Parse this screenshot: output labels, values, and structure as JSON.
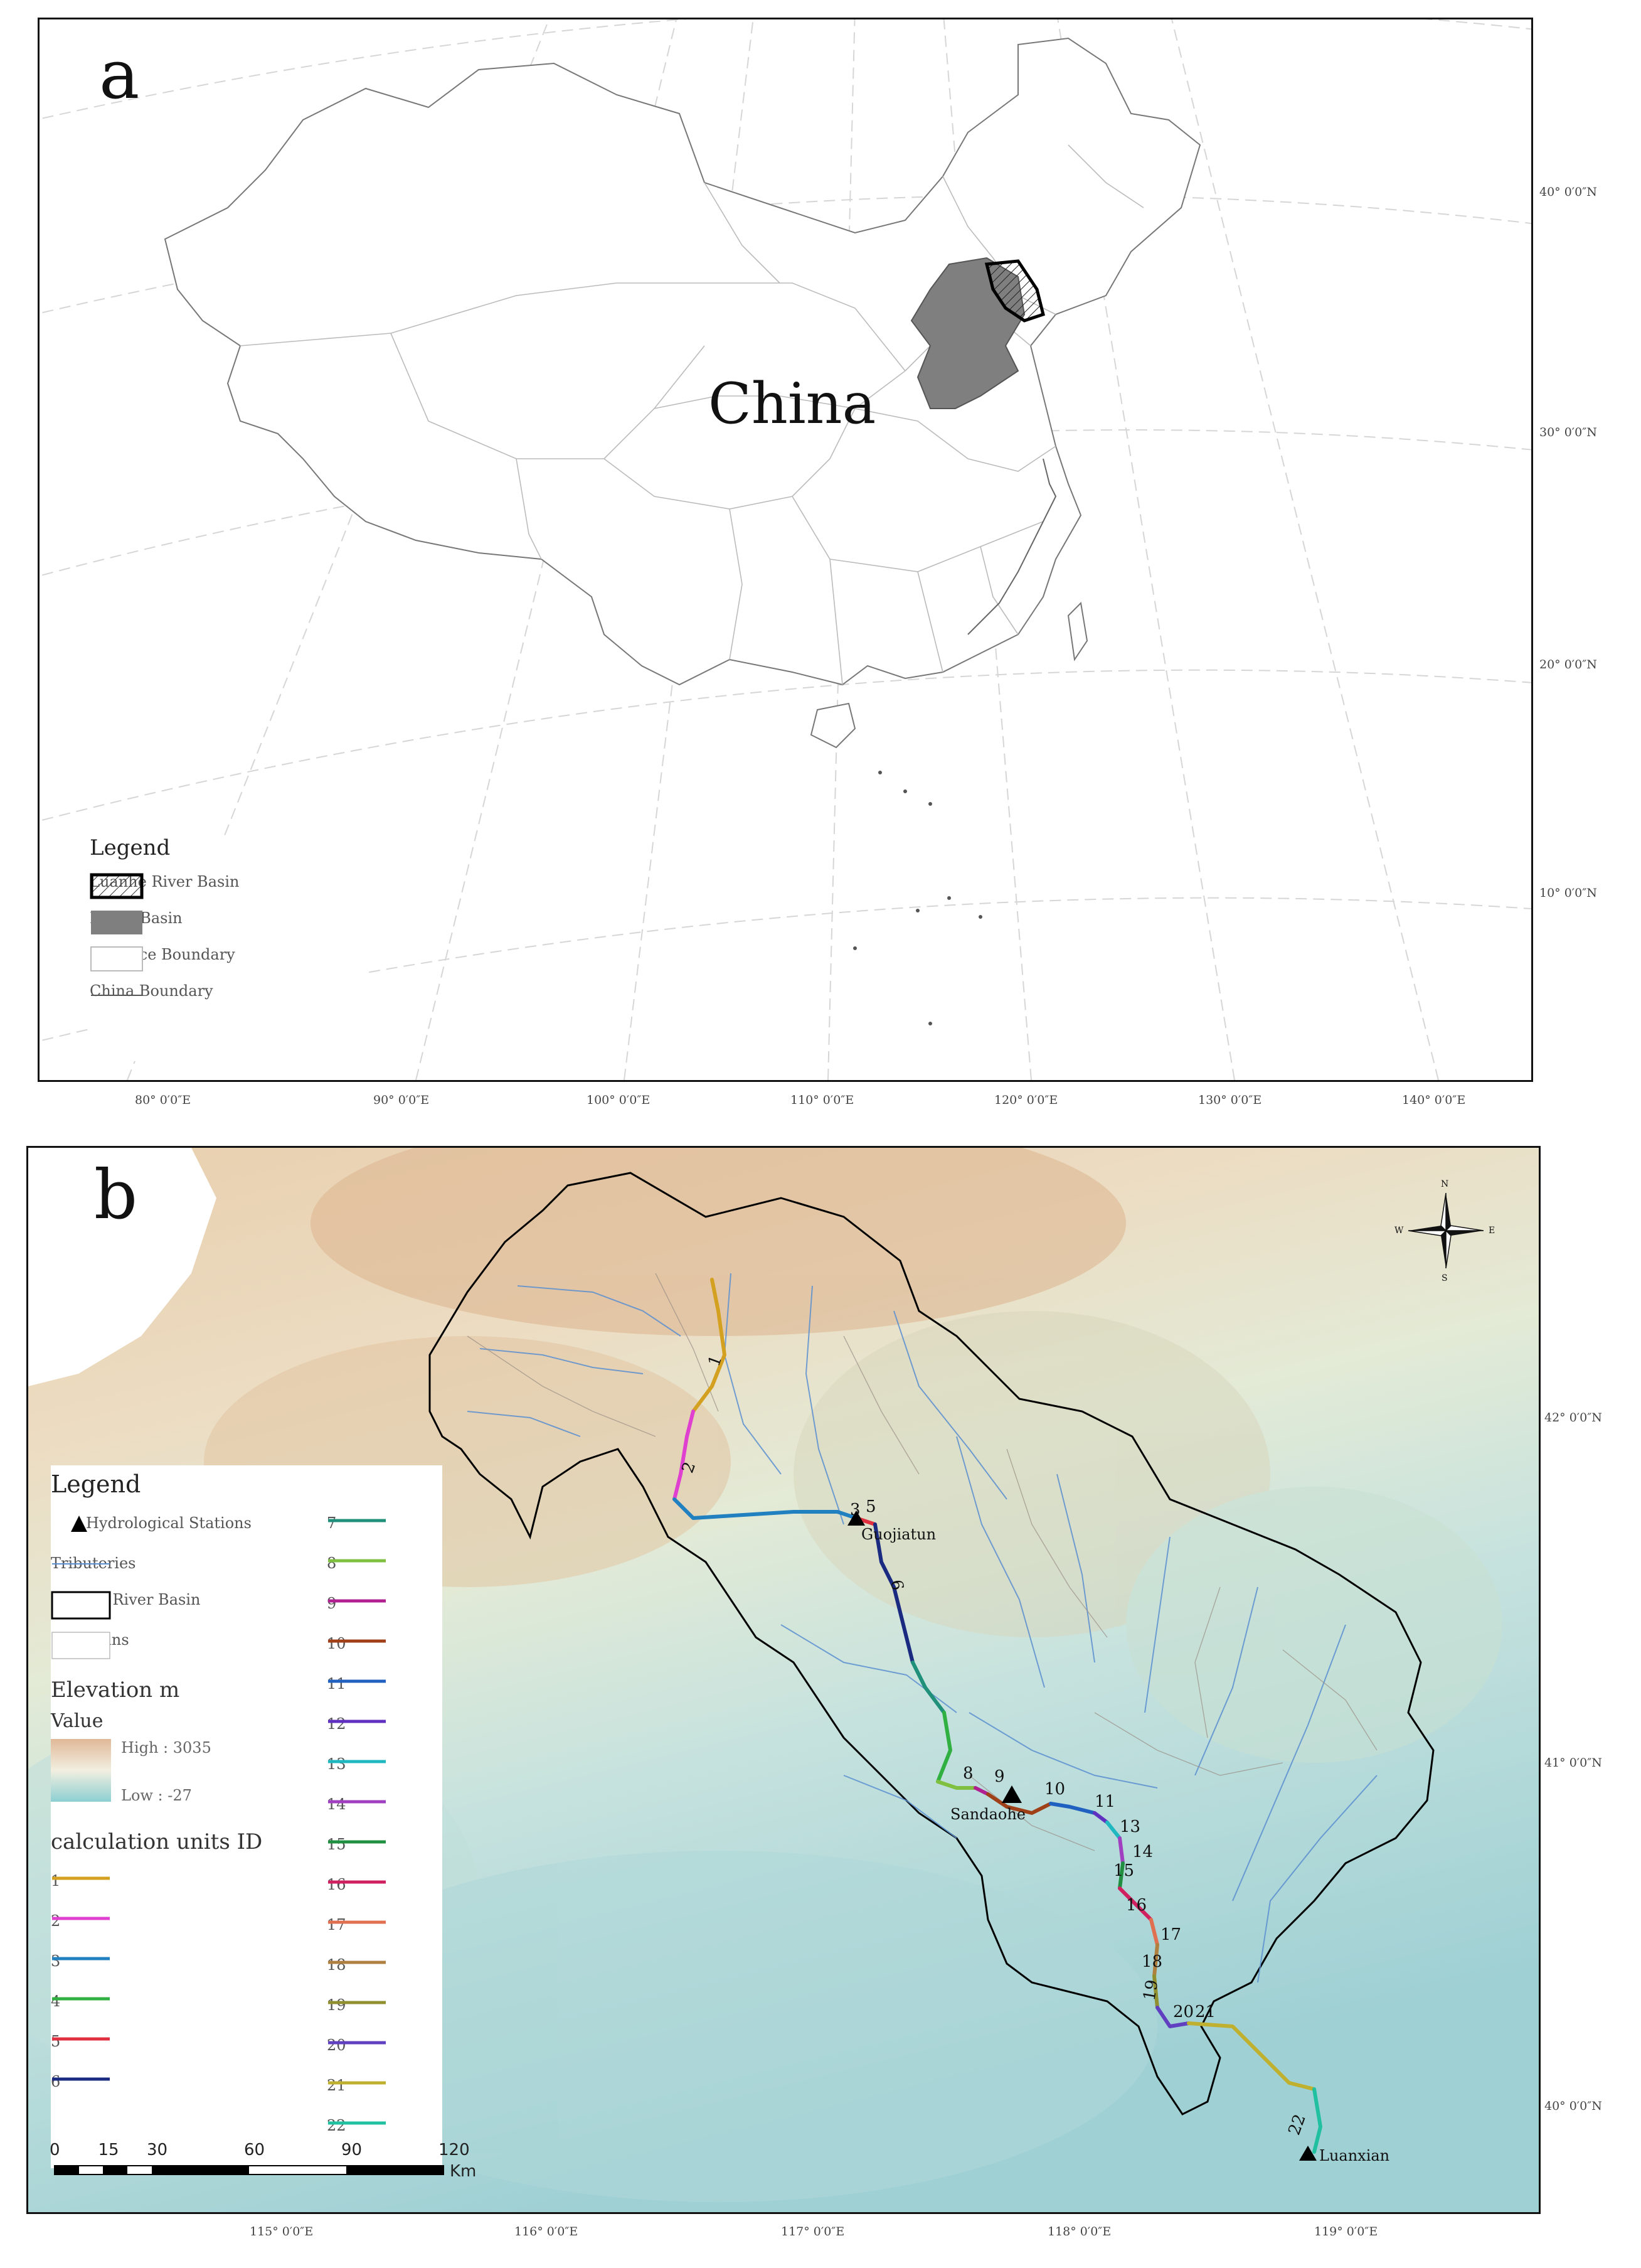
{
  "panel_a": {
    "letter": "a",
    "country_label": "China",
    "lat_ticks": [
      "40° 0′0″N",
      "30° 0′0″N",
      "20° 0′0″N",
      "10° 0′0″N"
    ],
    "lon_ticks": [
      "80° 0′0″E",
      "90° 0′0″E",
      "100° 0′0″E",
      "110° 0′0″E",
      "120° 0′0″E",
      "130° 0′0″E",
      "140° 0′0″E"
    ],
    "legend": {
      "title": "Legend",
      "items": [
        {
          "label": "Luanhe River Basin",
          "symbol": "hatched-box"
        },
        {
          "label": "Haihe Basin",
          "symbol": "gray-fill"
        },
        {
          "label": "Province Boundary",
          "symbol": "empty-box"
        },
        {
          "label": "China Boundary",
          "symbol": "line"
        }
      ]
    },
    "colors": {
      "haihe": "#7f7f7f",
      "boundary": "#888888"
    }
  },
  "panel_b": {
    "letter": "b",
    "stations": [
      "Guojiatun",
      "Sandaohe",
      "Luanxian"
    ],
    "lat_ticks": [
      "42° 0′0″N",
      "41° 0′0″N",
      "40° 0′0″N"
    ],
    "lon_ticks": [
      "115° 0′0″E",
      "116° 0′0″E",
      "117° 0′0″E",
      "118° 0′0″E",
      "119° 0′0″E"
    ],
    "compass": {
      "n": "N",
      "s": "S",
      "e": "E",
      "w": "W"
    },
    "legend": {
      "title": "Legend",
      "items": [
        {
          "label": "Hydrological Stations",
          "symbol": "triangle"
        },
        {
          "label": "Tributeries",
          "symbol": "blue-line"
        },
        {
          "label": "Luanhe River Basin",
          "symbol": "black-box"
        },
        {
          "label": "Subbasins",
          "symbol": "thin-box"
        }
      ],
      "elevation_title": "Elevation m",
      "value_label": "Value",
      "high_label": "High : 3035",
      "low_label": "Low : -27",
      "units_title": "calculation units ID",
      "units": [
        {
          "id": "1",
          "color": "#d4a020"
        },
        {
          "id": "2",
          "color": "#e040d0"
        },
        {
          "id": "3",
          "color": "#2080c0"
        },
        {
          "id": "4",
          "color": "#30b040"
        },
        {
          "id": "5",
          "color": "#e03040"
        },
        {
          "id": "6",
          "color": "#1a2a80"
        },
        {
          "id": "7",
          "color": "#20907a"
        },
        {
          "id": "8",
          "color": "#80c040"
        },
        {
          "id": "9",
          "color": "#b02090"
        },
        {
          "id": "10",
          "color": "#a04018"
        },
        {
          "id": "11",
          "color": "#2060c0"
        },
        {
          "id": "12",
          "color": "#6030c0"
        },
        {
          "id": "13",
          "color": "#20b8c0"
        },
        {
          "id": "14",
          "color": "#a040c0"
        },
        {
          "id": "15",
          "color": "#209040"
        },
        {
          "id": "16",
          "color": "#d02060"
        },
        {
          "id": "17",
          "color": "#e07050"
        },
        {
          "id": "18",
          "color": "#b08040"
        },
        {
          "id": "19",
          "color": "#909030"
        },
        {
          "id": "20",
          "color": "#6040c0"
        },
        {
          "id": "21",
          "color": "#c0b030"
        },
        {
          "id": "22",
          "color": "#20c0a0"
        }
      ]
    },
    "scale": {
      "ticks": [
        "0",
        "15",
        "30",
        "60",
        "90",
        "120"
      ],
      "unit": "Km"
    }
  }
}
